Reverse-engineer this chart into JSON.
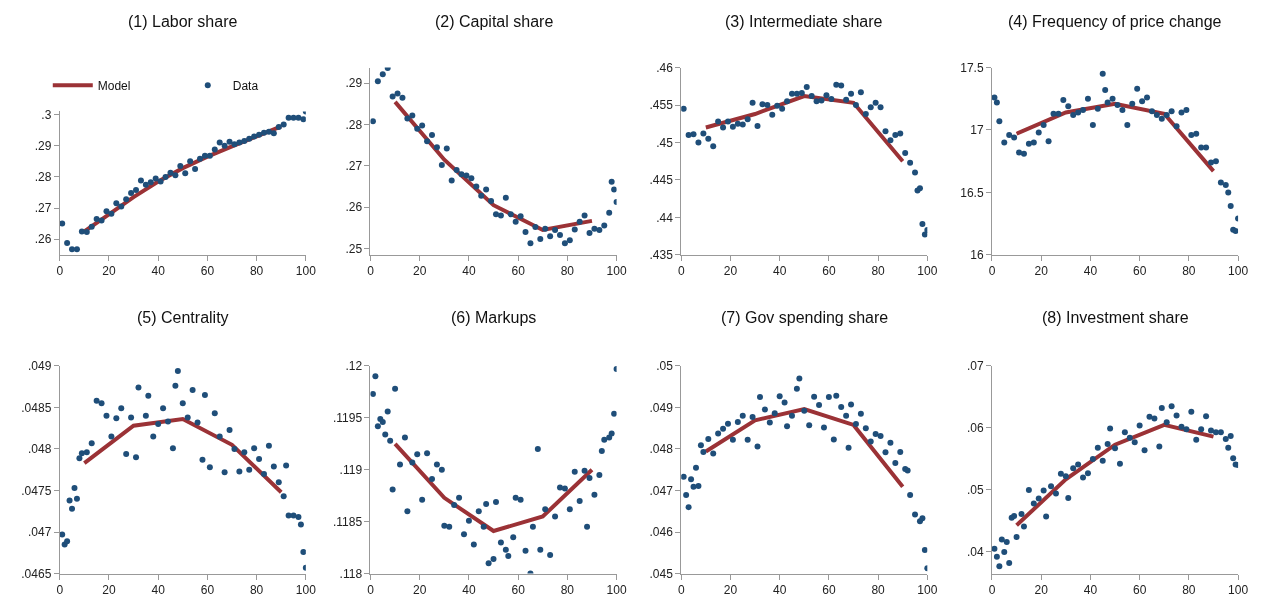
{
  "chart_data": [
    {
      "type": "line",
      "title": "(1) Labor share",
      "legend": "top",
      "xlim": [
        0,
        100
      ],
      "xticks": [
        0,
        20,
        40,
        60,
        80,
        100
      ],
      "ylim": [
        0.255,
        0.301
      ],
      "yticks": [
        {
          "value": 0.26,
          "label": ".26"
        },
        {
          "value": 0.27,
          "label": ".27"
        },
        {
          "value": 0.28,
          "label": ".28"
        },
        {
          "value": 0.29,
          "label": ".29"
        },
        {
          "value": 0.3,
          "label": ".3"
        }
      ],
      "series": [
        {
          "name": "Model",
          "color": "#9b3236",
          "x": [
            10,
            20,
            30,
            40,
            50,
            60,
            70,
            80,
            90
          ],
          "values": [
            0.2625,
            0.268,
            0.2735,
            0.2785,
            0.2828,
            0.2865,
            0.2898,
            0.293,
            0.2962
          ]
        },
        {
          "name": "Data",
          "type": "scatter",
          "marker": "circle",
          "color": "#1f4e79",
          "x": [
            1,
            3,
            5,
            7,
            9,
            11,
            13,
            15,
            17,
            19,
            21,
            23,
            25,
            27,
            29,
            31,
            33,
            35,
            37,
            39,
            41,
            43,
            45,
            47,
            49,
            51,
            53,
            55,
            57,
            59,
            61,
            63,
            65,
            67,
            69,
            71,
            73,
            75,
            77,
            79,
            81,
            83,
            85,
            87,
            89,
            91,
            93,
            95,
            97,
            99,
            100
          ],
          "values": [
            0.265,
            0.2588,
            0.2568,
            0.2568,
            0.2625,
            0.2623,
            0.264,
            0.2665,
            0.266,
            0.269,
            0.2682,
            0.2715,
            0.2705,
            0.2728,
            0.2748,
            0.2758,
            0.2788,
            0.2775,
            0.2783,
            0.2795,
            0.2785,
            0.28,
            0.2813,
            0.2805,
            0.2835,
            0.2812,
            0.285,
            0.2825,
            0.2858,
            0.2868,
            0.2868,
            0.2888,
            0.291,
            0.29,
            0.2913,
            0.2905,
            0.291,
            0.2915,
            0.2922,
            0.293,
            0.2935,
            0.2942,
            0.2945,
            0.294,
            0.296,
            0.2968,
            0.299,
            0.299,
            0.299,
            0.2985,
            0.301
          ]
        }
      ]
    },
    {
      "type": "line",
      "title": "(2) Capital share",
      "xlim": [
        0,
        100
      ],
      "xticks": [
        0,
        20,
        40,
        60,
        80,
        100
      ],
      "ylim": [
        0.2485,
        0.2938
      ],
      "yticks": [
        {
          "value": 0.25,
          "label": ".25"
        },
        {
          "value": 0.26,
          "label": ".26"
        },
        {
          "value": 0.27,
          "label": ".27"
        },
        {
          "value": 0.28,
          "label": ".28"
        },
        {
          "value": 0.29,
          "label": ".29"
        }
      ],
      "series": [
        {
          "color": "#9b3236",
          "x": [
            10,
            30,
            50,
            70,
            90
          ],
          "values": [
            0.2855,
            0.2715,
            0.2605,
            0.2545,
            0.2567
          ]
        },
        {
          "type": "scatter",
          "marker": "circle",
          "color": "#1f4e79",
          "x": [
            1,
            3,
            5,
            7,
            9,
            11,
            13,
            15,
            17,
            19,
            21,
            23,
            25,
            27,
            29,
            31,
            33,
            35,
            37,
            39,
            41,
            43,
            45,
            47,
            49,
            51,
            53,
            55,
            57,
            59,
            61,
            63,
            65,
            67,
            69,
            71,
            73,
            75,
            77,
            79,
            81,
            83,
            85,
            87,
            89,
            91,
            93,
            95,
            97,
            98,
            99,
            100
          ],
          "values": [
            0.2808,
            0.2905,
            0.2922,
            0.2937,
            0.2868,
            0.2875,
            0.2865,
            0.2815,
            0.2822,
            0.279,
            0.2798,
            0.276,
            0.2775,
            0.2745,
            0.2702,
            0.2742,
            0.2665,
            0.269,
            0.268,
            0.2677,
            0.267,
            0.265,
            0.2628,
            0.2643,
            0.2615,
            0.2583,
            0.258,
            0.2623,
            0.2583,
            0.2565,
            0.2578,
            0.254,
            0.2513,
            0.2552,
            0.2523,
            0.2548,
            0.253,
            0.2545,
            0.2533,
            0.2513,
            0.252,
            0.2546,
            0.2565,
            0.258,
            0.2538,
            0.2548,
            0.2545,
            0.2556,
            0.2587,
            0.2662,
            0.2643,
            0.2613
          ]
        }
      ]
    },
    {
      "type": "line",
      "title": "(3) Intermediate share",
      "xlim": [
        0,
        100
      ],
      "xticks": [
        0,
        20,
        40,
        60,
        80,
        100
      ],
      "ylim": [
        0.435,
        0.46
      ],
      "yticks": [
        {
          "value": 0.435,
          "label": ".435"
        },
        {
          "value": 0.44,
          "label": ".44"
        },
        {
          "value": 0.445,
          "label": ".445"
        },
        {
          "value": 0.45,
          "label": ".45"
        },
        {
          "value": 0.455,
          "label": ".455"
        },
        {
          "value": 0.46,
          "label": ".46"
        }
      ],
      "series": [
        {
          "type": "line",
          "color": "#9b3236",
          "x": [
            10,
            30,
            50,
            70,
            90
          ],
          "values": [
            0.452,
            0.4538,
            0.4562,
            0.4553,
            0.4475
          ]
        },
        {
          "type": "scatter",
          "marker": "circle",
          "color": "#1f4e79",
          "x": [
            1,
            3,
            5,
            7,
            9,
            11,
            13,
            15,
            17,
            19,
            21,
            23,
            25,
            27,
            29,
            31,
            33,
            35,
            37,
            39,
            41,
            43,
            45,
            47,
            49,
            51,
            53,
            55,
            57,
            59,
            61,
            63,
            65,
            67,
            69,
            71,
            73,
            75,
            77,
            79,
            81,
            83,
            85,
            87,
            89,
            91,
            93,
            95,
            96,
            97,
            98,
            99,
            100
          ],
          "values": [
            0.4545,
            0.451,
            0.4511,
            0.45,
            0.4512,
            0.4505,
            0.4495,
            0.4528,
            0.452,
            0.4528,
            0.4521,
            0.4525,
            0.4524,
            0.4531,
            0.4553,
            0.4522,
            0.4551,
            0.455,
            0.4537,
            0.4549,
            0.4545,
            0.4555,
            0.4565,
            0.4565,
            0.4566,
            0.4574,
            0.4562,
            0.4555,
            0.4556,
            0.4563,
            0.4558,
            0.4577,
            0.4576,
            0.4557,
            0.4565,
            0.455,
            0.4567,
            0.4538,
            0.4547,
            0.4553,
            0.4547,
            0.4515,
            0.4503,
            0.451,
            0.4512,
            0.4486,
            0.4473,
            0.446,
            0.4436,
            0.4439,
            0.4391,
            0.4377,
            0.4383
          ]
        }
      ]
    },
    {
      "type": "line",
      "title": "(4) Frequency of price change",
      "xlim": [
        0,
        100
      ],
      "xticks": [
        0,
        20,
        40,
        60,
        80,
        100
      ],
      "ylim": [
        16,
        17.5
      ],
      "yticks": [
        16,
        16.5,
        17,
        17.5
      ],
      "series": [
        {
          "type": "line",
          "color": "#9b3236",
          "x": [
            10,
            30,
            50,
            70,
            90
          ],
          "values": [
            16.97,
            17.14,
            17.21,
            17.13,
            16.67
          ]
        },
        {
          "type": "scatter",
          "marker": "circle",
          "color": "#1f4e79",
          "x": [
            1,
            2,
            3,
            5,
            7,
            9,
            11,
            13,
            15,
            17,
            19,
            21,
            23,
            25,
            27,
            29,
            31,
            33,
            35,
            37,
            39,
            41,
            43,
            45,
            46,
            47,
            49,
            51,
            53,
            55,
            57,
            59,
            61,
            63,
            65,
            67,
            69,
            71,
            73,
            75,
            77,
            79,
            81,
            83,
            85,
            87,
            89,
            91,
            93,
            95,
            96,
            97,
            98,
            99,
            100
          ],
          "values": [
            17.26,
            17.22,
            17.07,
            16.9,
            16.96,
            16.94,
            16.82,
            16.81,
            16.89,
            16.9,
            16.98,
            17.04,
            16.91,
            17.13,
            17.13,
            17.24,
            17.19,
            17.12,
            17.14,
            17.16,
            17.25,
            17.04,
            17.17,
            17.45,
            17.32,
            17.22,
            17.25,
            17.2,
            17.16,
            17.04,
            17.21,
            17.33,
            17.23,
            17.26,
            17.15,
            17.12,
            17.09,
            17.12,
            17.15,
            17.03,
            17.14,
            17.16,
            16.96,
            16.97,
            16.86,
            16.86,
            16.74,
            16.75,
            16.58,
            16.56,
            16.5,
            16.39,
            16.2,
            16.19,
            16.29
          ]
        }
      ]
    },
    {
      "type": "line",
      "title": "(5) Centrality",
      "xlim": [
        0,
        100
      ],
      "xticks": [
        0,
        20,
        40,
        60,
        80,
        100
      ],
      "ylim": [
        0.0465,
        0.049
      ],
      "yticks": [
        {
          "value": 0.0465,
          "label": ".0465"
        },
        {
          "value": 0.047,
          "label": ".047"
        },
        {
          "value": 0.0475,
          "label": ".0475"
        },
        {
          "value": 0.048,
          "label": ".048"
        },
        {
          "value": 0.0485,
          "label": ".0485"
        },
        {
          "value": 0.049,
          "label": ".049"
        }
      ],
      "series": [
        {
          "type": "line",
          "color": "#9b3236",
          "x": [
            10,
            30,
            50,
            70,
            90
          ],
          "values": [
            0.04783,
            0.04828,
            0.04836,
            0.04805,
            0.04748
          ]
        },
        {
          "type": "scatter",
          "marker": "circle",
          "color": "#1f4e79",
          "x": [
            1,
            2,
            3,
            4,
            5,
            6,
            7,
            8,
            9,
            11,
            13,
            15,
            17,
            19,
            21,
            23,
            25,
            27,
            29,
            31,
            32,
            35,
            36,
            38,
            40,
            42,
            44,
            46,
            47,
            48,
            50,
            52,
            54,
            56,
            58,
            59,
            61,
            63,
            65,
            67,
            69,
            71,
            73,
            75,
            77,
            79,
            81,
            83,
            85,
            87,
            89,
            91,
            92,
            93,
            95,
            97,
            98,
            99,
            100
          ],
          "values": [
            0.04697,
            0.04685,
            0.04689,
            0.04738,
            0.04728,
            0.04753,
            0.0474,
            0.04789,
            0.04795,
            0.04796,
            0.04807,
            0.04858,
            0.04855,
            0.0484,
            0.04815,
            0.04837,
            0.04849,
            0.04794,
            0.04838,
            0.0479,
            0.04874,
            0.0484,
            0.04864,
            0.04815,
            0.0483,
            0.04849,
            0.04833,
            0.04801,
            0.04876,
            0.04894,
            0.04855,
            0.04838,
            0.04871,
            0.04832,
            0.04787,
            0.04865,
            0.04778,
            0.04843,
            0.04815,
            0.04772,
            0.04823,
            0.048,
            0.04773,
            0.04796,
            0.04775,
            0.04801,
            0.04788,
            0.0477,
            0.04804,
            0.04779,
            0.0476,
            0.04743,
            0.0478,
            0.0472,
            0.0472,
            0.04718,
            0.04709,
            0.04676,
            0.04657
          ]
        }
      ]
    },
    {
      "type": "line",
      "title": "(6) Markups",
      "xlim": [
        0,
        100
      ],
      "xticks": [
        0,
        20,
        40,
        60,
        80,
        100
      ],
      "ylim": [
        0.118,
        0.12
      ],
      "yticks": [
        {
          "value": 0.118,
          "label": ".118"
        },
        {
          "value": 0.1185,
          "label": ".1185"
        },
        {
          "value": 0.119,
          "label": ".119"
        },
        {
          "value": 0.1195,
          "label": ".1195"
        },
        {
          "value": 0.12,
          "label": ".12"
        }
      ],
      "series": [
        {
          "type": "line",
          "color": "#9b3236",
          "x": [
            10,
            30,
            50,
            70,
            90
          ],
          "values": [
            0.11925,
            0.11873,
            0.11841,
            0.11855,
            0.119
          ]
        },
        {
          "type": "scatter",
          "marker": "circle",
          "color": "#1f4e79",
          "x": [
            1,
            2,
            3,
            4,
            5,
            6,
            7,
            8,
            9,
            10,
            12,
            14,
            15,
            17,
            19,
            21,
            23,
            25,
            27,
            29,
            30,
            32,
            34,
            36,
            38,
            40,
            42,
            44,
            46,
            47,
            48,
            50,
            51,
            53,
            55,
            56,
            58,
            59,
            61,
            63,
            65,
            66,
            68,
            69,
            71,
            73,
            75,
            77,
            79,
            81,
            83,
            85,
            87,
            88,
            89,
            91,
            93,
            94,
            95,
            97,
            98,
            99,
            100
          ],
          "values": [
            0.11973,
            0.1199,
            0.11942,
            0.11949,
            0.11946,
            0.11934,
            0.11956,
            0.11928,
            0.11881,
            0.11978,
            0.11905,
            0.11931,
            0.1186,
            0.11907,
            0.11915,
            0.11871,
            0.11916,
            0.11891,
            0.11905,
            0.119,
            0.11846,
            0.11845,
            0.11866,
            0.11873,
            0.11838,
            0.11851,
            0.11828,
            0.1186,
            0.11845,
            0.11867,
            0.1181,
            0.11814,
            0.11869,
            0.1183,
            0.11823,
            0.11817,
            0.11835,
            0.11873,
            0.11871,
            0.11822,
            0.118,
            0.11845,
            0.1192,
            0.11823,
            0.11862,
            0.11818,
            0.11855,
            0.11883,
            0.11882,
            0.11862,
            0.11898,
            0.1187,
            0.11899,
            0.11845,
            0.11892,
            0.11876,
            0.11895,
            0.11918,
            0.11929,
            0.11931,
            0.11935,
            0.11954,
            0.11997
          ]
        }
      ]
    },
    {
      "type": "line",
      "title": "(7) Gov spending share",
      "xlim": [
        0,
        100
      ],
      "xticks": [
        0,
        20,
        40,
        60,
        80,
        100
      ],
      "ylim": [
        0.045,
        0.05
      ],
      "yticks": [
        {
          "value": 0.045,
          "label": ".045"
        },
        {
          "value": 0.046,
          "label": ".046"
        },
        {
          "value": 0.047,
          "label": ".047"
        },
        {
          "value": 0.048,
          "label": ".048"
        },
        {
          "value": 0.049,
          "label": ".049"
        },
        {
          "value": 0.05,
          "label": ".05"
        }
      ],
      "series": [
        {
          "type": "line",
          "color": "#9b3236",
          "x": [
            10,
            30,
            50,
            70,
            90
          ],
          "values": [
            0.04794,
            0.04869,
            0.04896,
            0.04858,
            0.04709
          ]
        },
        {
          "type": "scatter",
          "marker": "circle",
          "color": "#1f4e79",
          "x": [
            1,
            2,
            3,
            4,
            5,
            6,
            7,
            8,
            9,
            11,
            13,
            15,
            17,
            19,
            21,
            23,
            25,
            27,
            29,
            31,
            32,
            34,
            36,
            38,
            40,
            42,
            43,
            45,
            47,
            48,
            50,
            52,
            54,
            56,
            58,
            60,
            62,
            63,
            65,
            67,
            68,
            69,
            71,
            73,
            75,
            77,
            79,
            81,
            83,
            85,
            87,
            89,
            91,
            92,
            93,
            95,
            97,
            98,
            99,
            100
          ],
          "values": [
            0.04733,
            0.04689,
            0.0466,
            0.04727,
            0.04709,
            0.04755,
            0.04711,
            0.04809,
            0.04793,
            0.04824,
            0.04789,
            0.04837,
            0.04849,
            0.04861,
            0.04822,
            0.04865,
            0.0488,
            0.04822,
            0.04877,
            0.04806,
            0.04925,
            0.04895,
            0.04864,
            0.04886,
            0.04927,
            0.04912,
            0.04855,
            0.0488,
            0.04945,
            0.0497,
            0.04892,
            0.04857,
            0.04926,
            0.04906,
            0.04852,
            0.04925,
            0.04823,
            0.04928,
            0.04901,
            0.0488,
            0.04803,
            0.04907,
            0.0486,
            0.04885,
            0.0485,
            0.04818,
            0.04836,
            0.04831,
            0.04792,
            0.04815,
            0.04766,
            0.04793,
            0.04752,
            0.04748,
            0.04689,
            0.04642,
            0.04626,
            0.04633,
            0.04557,
            0.04513
          ]
        }
      ]
    },
    {
      "type": "line",
      "title": "(8) Investment share",
      "xlim": [
        0,
        100
      ],
      "xticks": [
        0,
        20,
        40,
        60,
        80,
        100
      ],
      "ylim": [
        0.0365,
        0.07
      ],
      "yticks": [
        {
          "value": 0.04,
          "label": ".04"
        },
        {
          "value": 0.05,
          "label": ".05"
        },
        {
          "value": 0.06,
          "label": ".06"
        },
        {
          "value": 0.07,
          "label": ".07"
        }
      ],
      "series": [
        {
          "type": "line",
          "color": "#9b3236",
          "x": [
            10,
            30,
            50,
            70,
            90
          ],
          "values": [
            0.0443,
            0.0517,
            0.0573,
            0.0605,
            0.0586
          ]
        },
        {
          "type": "scatter",
          "marker": "circle",
          "color": "#1f4e79",
          "x": [
            1,
            2,
            3,
            4,
            5,
            6,
            7,
            8,
            9,
            10,
            12,
            13,
            15,
            17,
            19,
            21,
            22,
            24,
            26,
            28,
            30,
            31,
            33,
            35,
            37,
            39,
            41,
            43,
            45,
            47,
            48,
            50,
            52,
            54,
            56,
            58,
            60,
            62,
            64,
            66,
            68,
            69,
            71,
            73,
            75,
            77,
            79,
            81,
            83,
            85,
            87,
            89,
            91,
            93,
            95,
            96,
            97,
            98,
            99,
            100
          ],
          "values": [
            0.0405,
            0.0392,
            0.0377,
            0.042,
            0.04,
            0.0416,
            0.0382,
            0.0455,
            0.0458,
            0.0424,
            0.0461,
            0.0441,
            0.05,
            0.0478,
            0.0486,
            0.0499,
            0.0457,
            0.0506,
            0.0494,
            0.0526,
            0.0522,
            0.0487,
            0.0535,
            0.0541,
            0.052,
            0.0527,
            0.055,
            0.0568,
            0.0547,
            0.0574,
            0.0599,
            0.0567,
            0.0542,
            0.0593,
            0.0584,
            0.0577,
            0.0604,
            0.0564,
            0.0618,
            0.0615,
            0.057,
            0.0632,
            0.0609,
            0.0635,
            0.062,
            0.0602,
            0.0598,
            0.0626,
            0.0581,
            0.0598,
            0.0619,
            0.0596,
            0.0593,
            0.0593,
            0.0582,
            0.0568,
            0.0587,
            0.0551,
            0.0541,
            0.054
          ]
        }
      ]
    }
  ]
}
